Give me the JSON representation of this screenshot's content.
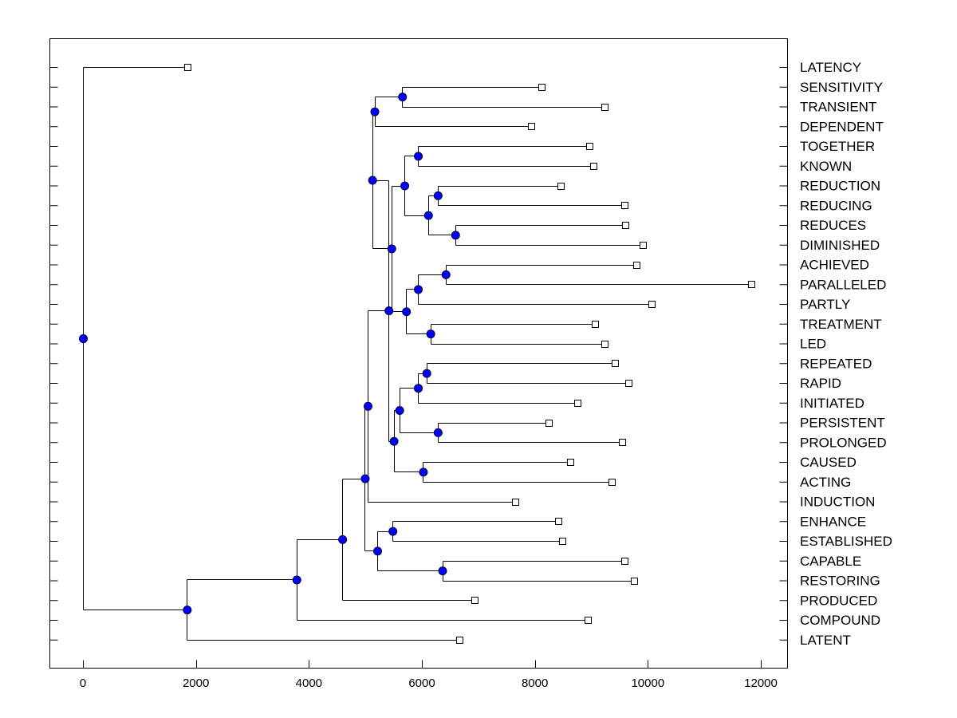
{
  "chart_data": {
    "type": "dendrogram",
    "title": "",
    "xlabel": "",
    "ylabel": "",
    "xlim": [
      -600,
      12600
    ],
    "x_ticks": [
      0,
      2000,
      4000,
      6000,
      8000,
      10000,
      12000
    ],
    "x_tick_labels": [
      "0",
      "2000",
      "4000",
      "6000",
      "8000",
      "10000",
      "12000"
    ],
    "node_color": "#0000ff",
    "leaves": [
      {
        "label": "LATENCY",
        "value": 1850
      },
      {
        "label": "SENSITIVITY",
        "value": 8120
      },
      {
        "label": "TRANSIENT",
        "value": 9230
      },
      {
        "label": "DEPENDENT",
        "value": 7930
      },
      {
        "label": "TOGETHER",
        "value": 8960
      },
      {
        "label": "KNOWN",
        "value": 9040
      },
      {
        "label": "REDUCTION",
        "value": 8450
      },
      {
        "label": "REDUCING",
        "value": 9580
      },
      {
        "label": "REDUCES",
        "value": 9600
      },
      {
        "label": "DIMINISHED",
        "value": 9910
      },
      {
        "label": "ACHIEVED",
        "value": 9800
      },
      {
        "label": "PARALLELED",
        "value": 11830
      },
      {
        "label": "PARTLY",
        "value": 10060
      },
      {
        "label": "TREATMENT",
        "value": 9060
      },
      {
        "label": "LED",
        "value": 9230
      },
      {
        "label": "REPEATED",
        "value": 9410
      },
      {
        "label": "RAPID",
        "value": 9650
      },
      {
        "label": "INITIATED",
        "value": 8750
      },
      {
        "label": "PERSISTENT",
        "value": 8240
      },
      {
        "label": "PROLONGED",
        "value": 9550
      },
      {
        "label": "CAUSED",
        "value": 8630
      },
      {
        "label": "ACTING",
        "value": 9360
      },
      {
        "label": "INDUCTION",
        "value": 7650
      },
      {
        "label": "ENHANCE",
        "value": 8420
      },
      {
        "label": "ESTABLISHED",
        "value": 8480
      },
      {
        "label": "CAPABLE",
        "value": 9590
      },
      {
        "label": "RESTORING",
        "value": 9760
      },
      {
        "label": "PRODUCED",
        "value": 6930
      },
      {
        "label": "COMPOUND",
        "value": 8940
      },
      {
        "label": "LATENT",
        "value": 6670
      }
    ],
    "merges": [
      {
        "id": "A",
        "value": 5650,
        "children": [
          "SENSITIVITY",
          "TRANSIENT"
        ]
      },
      {
        "id": "B",
        "value": 5160,
        "children": [
          "A",
          "DEPENDENT"
        ]
      },
      {
        "id": "C",
        "value": 5930,
        "children": [
          "TOGETHER",
          "KNOWN"
        ]
      },
      {
        "id": "D",
        "value": 6280,
        "children": [
          "REDUCTION",
          "REDUCING"
        ]
      },
      {
        "id": "E",
        "value": 6590,
        "children": [
          "REDUCES",
          "DIMINISHED"
        ]
      },
      {
        "id": "F",
        "value": 6110,
        "children": [
          "D",
          "E"
        ]
      },
      {
        "id": "G",
        "value": 5690,
        "children": [
          "C",
          "F"
        ]
      },
      {
        "id": "H",
        "value": 6420,
        "children": [
          "ACHIEVED",
          "PARALLELED"
        ]
      },
      {
        "id": "I",
        "value": 5930,
        "children": [
          "H",
          "PARTLY"
        ]
      },
      {
        "id": "J",
        "value": 6150,
        "children": [
          "TREATMENT",
          "LED"
        ]
      },
      {
        "id": "K",
        "value": 5720,
        "children": [
          "I",
          "J"
        ]
      },
      {
        "id": "L",
        "value": 5460,
        "children": [
          "G",
          "K"
        ]
      },
      {
        "id": "M",
        "value": 5120,
        "children": [
          "B",
          "L"
        ]
      },
      {
        "id": "N",
        "value": 6080,
        "children": [
          "REPEATED",
          "RAPID"
        ]
      },
      {
        "id": "O",
        "value": 5930,
        "children": [
          "N",
          "INITIATED"
        ]
      },
      {
        "id": "P",
        "value": 6280,
        "children": [
          "PERSISTENT",
          "PROLONGED"
        ]
      },
      {
        "id": "Q",
        "value": 5600,
        "children": [
          "O",
          "P"
        ]
      },
      {
        "id": "R",
        "value": 6020,
        "children": [
          "CAUSED",
          "ACTING"
        ]
      },
      {
        "id": "S",
        "value": 5500,
        "children": [
          "Q",
          "R"
        ]
      },
      {
        "id": "T",
        "value": 5410,
        "children": [
          "M",
          "S"
        ]
      },
      {
        "id": "U",
        "value": 5040,
        "children": [
          "T",
          "INDUCTION"
        ]
      },
      {
        "id": "V",
        "value": 5480,
        "children": [
          "ENHANCE",
          "ESTABLISHED"
        ]
      },
      {
        "id": "W",
        "value": 6360,
        "children": [
          "CAPABLE",
          "RESTORING"
        ]
      },
      {
        "id": "X",
        "value": 5210,
        "children": [
          "V",
          "W"
        ]
      },
      {
        "id": "Y",
        "value": 4990,
        "children": [
          "U",
          "X"
        ]
      },
      {
        "id": "Z",
        "value": 4590,
        "children": [
          "Y",
          "PRODUCED"
        ]
      },
      {
        "id": "AA",
        "value": 3780,
        "children": [
          "Z",
          "COMPOUND"
        ]
      },
      {
        "id": "AB",
        "value": 1840,
        "children": [
          "AA",
          "LATENT"
        ]
      },
      {
        "id": "ROOT",
        "value": 0,
        "children": [
          "LATENCY",
          "AB"
        ]
      }
    ]
  }
}
